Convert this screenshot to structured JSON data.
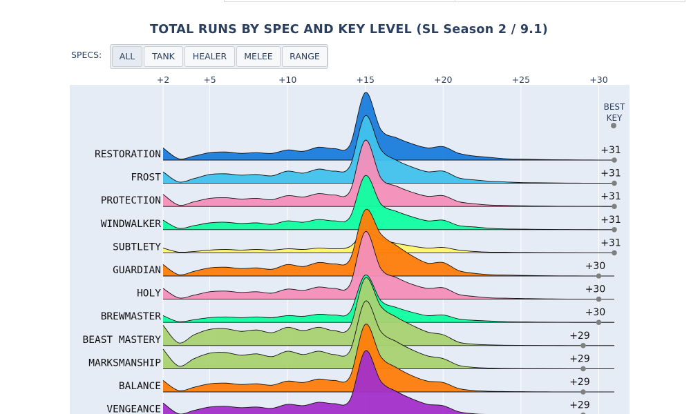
{
  "title": "TOTAL RUNS BY SPEC AND KEY LEVEL (SL Season 2 / 9.1)",
  "filter": {
    "label": "SPECS:",
    "buttons": [
      {
        "label": "ALL",
        "active": true
      },
      {
        "label": "TANK",
        "active": false
      },
      {
        "label": "HEALER",
        "active": false
      },
      {
        "label": "MELEE",
        "active": false
      },
      {
        "label": "RANGE",
        "active": false
      }
    ]
  },
  "colors": {
    "plot_background": "#e5ecf6",
    "axis_text": "#2a3f5f",
    "marker": "#808080"
  },
  "best_key_header": [
    "BEST",
    "KEY"
  ],
  "chart_data": {
    "type": "ridgeline",
    "x_axis": {
      "min": 2,
      "max": 32,
      "ticks": [
        2,
        5,
        10,
        15,
        20,
        25,
        30
      ],
      "tick_labels": [
        "+2",
        "+5",
        "+10",
        "+15",
        "+20",
        "+25",
        "+30"
      ],
      "position": "top",
      "grid": true
    },
    "x_levels": [
      2,
      3,
      4,
      5,
      6,
      7,
      8,
      9,
      10,
      11,
      12,
      13,
      14,
      15,
      16,
      17,
      18,
      19,
      20,
      21,
      22,
      23,
      24,
      25,
      26,
      27,
      28,
      29,
      30,
      31
    ],
    "series": [
      {
        "name": "RESTORATION",
        "color": "#1a7ddb",
        "best_key": 31,
        "best_key_label": "+31",
        "profile": [
          0.18,
          0.02,
          0.06,
          0.11,
          0.12,
          0.1,
          0.11,
          0.1,
          0.15,
          0.13,
          0.19,
          0.17,
          0.22,
          1.0,
          0.45,
          0.33,
          0.24,
          0.18,
          0.2,
          0.1,
          0.06,
          0.04,
          0.02,
          0.015,
          0.01,
          0.006,
          0.004,
          0.002,
          0.001,
          0.0
        ]
      },
      {
        "name": "FROST",
        "color": "#41c1ec",
        "best_key": 31,
        "best_key_label": "+31",
        "profile": [
          0.17,
          0.02,
          0.07,
          0.13,
          0.14,
          0.12,
          0.13,
          0.11,
          0.18,
          0.15,
          0.21,
          0.18,
          0.25,
          1.0,
          0.5,
          0.34,
          0.24,
          0.17,
          0.18,
          0.08,
          0.05,
          0.03,
          0.02,
          0.01,
          0.008,
          0.005,
          0.003,
          0.002,
          0.001,
          0.0
        ]
      },
      {
        "name": "PROTECTION",
        "color": "#f48fb9",
        "best_key": 31,
        "best_key_label": "+31",
        "profile": [
          0.18,
          0.02,
          0.07,
          0.12,
          0.13,
          0.11,
          0.12,
          0.1,
          0.16,
          0.14,
          0.19,
          0.17,
          0.22,
          0.98,
          0.42,
          0.3,
          0.21,
          0.15,
          0.16,
          0.07,
          0.04,
          0.02,
          0.015,
          0.01,
          0.006,
          0.004,
          0.002,
          0.001,
          0.001,
          0.0
        ]
      },
      {
        "name": "WINDWALKER",
        "color": "#0fffa0",
        "best_key": 31,
        "best_key_label": "+31",
        "profile": [
          0.14,
          0.02,
          0.06,
          0.1,
          0.11,
          0.09,
          0.1,
          0.08,
          0.13,
          0.11,
          0.15,
          0.13,
          0.18,
          0.8,
          0.38,
          0.27,
          0.19,
          0.13,
          0.14,
          0.06,
          0.04,
          0.02,
          0.01,
          0.008,
          0.005,
          0.003,
          0.002,
          0.001,
          0.0,
          0.0
        ]
      },
      {
        "name": "SUBTLETY",
        "color": "#fff569",
        "best_key": 31,
        "best_key_label": "+31",
        "profile": [
          0.07,
          0.01,
          0.02,
          0.04,
          0.05,
          0.04,
          0.05,
          0.04,
          0.06,
          0.05,
          0.07,
          0.06,
          0.09,
          0.3,
          0.2,
          0.14,
          0.1,
          0.07,
          0.08,
          0.04,
          0.02,
          0.01,
          0.008,
          0.005,
          0.003,
          0.002,
          0.001,
          0.0,
          0.0,
          0.0
        ]
      },
      {
        "name": "GUARDIAN",
        "color": "#ff7d0a",
        "best_key": 30,
        "best_key_label": "+30",
        "profile": [
          0.17,
          0.02,
          0.07,
          0.12,
          0.13,
          0.11,
          0.12,
          0.1,
          0.17,
          0.14,
          0.2,
          0.18,
          0.24,
          0.98,
          0.62,
          0.45,
          0.3,
          0.19,
          0.2,
          0.08,
          0.04,
          0.02,
          0.015,
          0.01,
          0.006,
          0.003,
          0.002,
          0.001,
          0.0,
          0.0
        ]
      },
      {
        "name": "HOLY",
        "color": "#f48fb9",
        "best_key": 30,
        "best_key_label": "+30",
        "profile": [
          0.16,
          0.02,
          0.06,
          0.11,
          0.12,
          0.1,
          0.11,
          0.09,
          0.15,
          0.13,
          0.18,
          0.16,
          0.21,
          1.0,
          0.45,
          0.32,
          0.22,
          0.16,
          0.17,
          0.07,
          0.04,
          0.02,
          0.015,
          0.01,
          0.006,
          0.004,
          0.002,
          0.001,
          0.0,
          0.0
        ]
      },
      {
        "name": "BREWMASTER",
        "color": "#0fffa0",
        "best_key": 30,
        "best_key_label": "+30",
        "profile": [
          0.1,
          0.01,
          0.04,
          0.07,
          0.08,
          0.07,
          0.08,
          0.07,
          0.1,
          0.09,
          0.12,
          0.11,
          0.15,
          0.7,
          0.32,
          0.22,
          0.15,
          0.1,
          0.11,
          0.05,
          0.03,
          0.02,
          0.01,
          0.007,
          0.004,
          0.002,
          0.001,
          0.0,
          0.0,
          0.0
        ]
      },
      {
        "name": "BEAST MASTERY",
        "color": "#a9d271",
        "best_key": 29,
        "best_key_label": "+29",
        "profile": [
          0.3,
          0.04,
          0.16,
          0.24,
          0.25,
          0.21,
          0.23,
          0.19,
          0.27,
          0.22,
          0.27,
          0.22,
          0.27,
          1.0,
          0.58,
          0.42,
          0.3,
          0.2,
          0.16,
          0.05,
          0.02,
          0.01,
          0.005,
          0.003,
          0.002,
          0.001,
          0.0,
          0.0,
          0.0,
          0.0
        ]
      },
      {
        "name": "MARKSMANSHIP",
        "color": "#a9d271",
        "best_key": 29,
        "best_key_label": "+29",
        "profile": [
          0.29,
          0.04,
          0.15,
          0.23,
          0.24,
          0.2,
          0.22,
          0.18,
          0.26,
          0.21,
          0.26,
          0.21,
          0.26,
          1.0,
          0.55,
          0.4,
          0.28,
          0.19,
          0.15,
          0.05,
          0.02,
          0.01,
          0.005,
          0.003,
          0.002,
          0.001,
          0.0,
          0.0,
          0.0,
          0.0
        ]
      },
      {
        "name": "BALANCE",
        "color": "#ff7d0a",
        "best_key": 29,
        "best_key_label": "+29",
        "profile": [
          0.17,
          0.02,
          0.07,
          0.12,
          0.13,
          0.11,
          0.12,
          0.1,
          0.16,
          0.14,
          0.19,
          0.17,
          0.22,
          1.0,
          0.52,
          0.36,
          0.24,
          0.16,
          0.14,
          0.05,
          0.02,
          0.01,
          0.006,
          0.004,
          0.002,
          0.001,
          0.0,
          0.0,
          0.0,
          0.0
        ]
      },
      {
        "name": "VENGEANCE",
        "color": "#a330c9",
        "best_key": 29,
        "best_key_label": "+29",
        "profile": [
          0.18,
          0.02,
          0.07,
          0.12,
          0.13,
          0.11,
          0.12,
          0.1,
          0.16,
          0.14,
          0.19,
          0.17,
          0.22,
          0.95,
          0.5,
          0.35,
          0.24,
          0.16,
          0.14,
          0.05,
          0.02,
          0.01,
          0.006,
          0.004,
          0.002,
          0.001,
          0.0,
          0.0,
          0.0,
          0.0
        ]
      }
    ]
  }
}
